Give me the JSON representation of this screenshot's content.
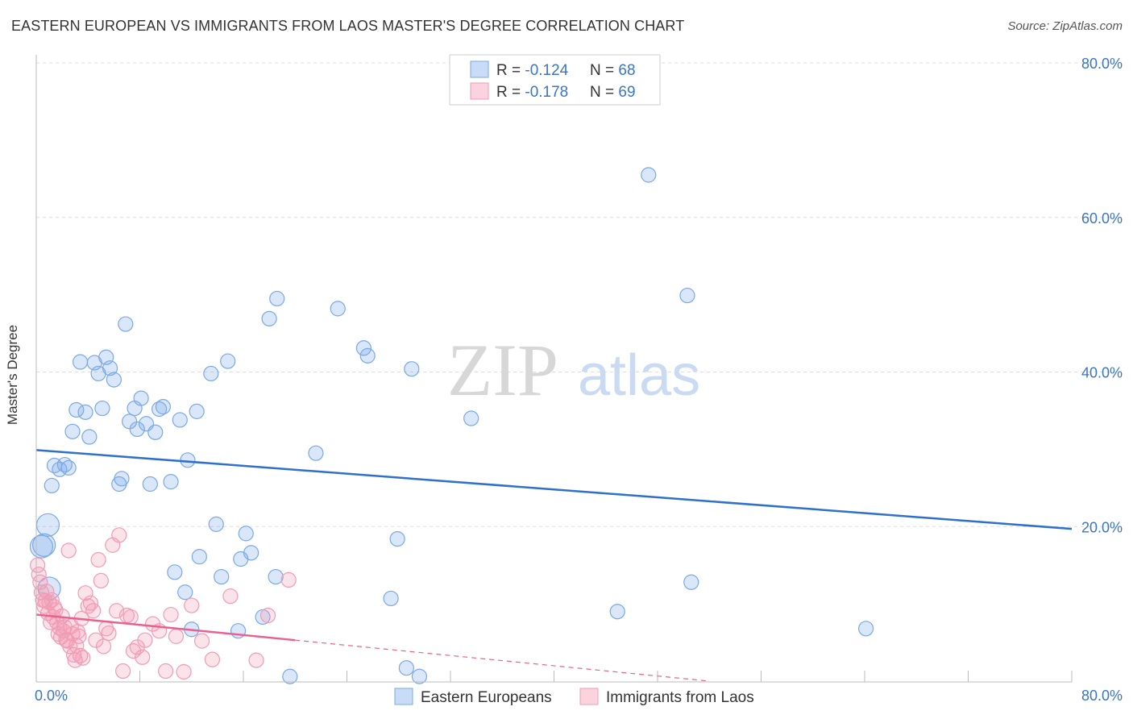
{
  "title": "EASTERN EUROPEAN VS IMMIGRANTS FROM LAOS MASTER'S DEGREE CORRELATION CHART",
  "source": "Source: ZipAtlas.com",
  "watermark": {
    "zip": "ZIP",
    "atlas": "atlas"
  },
  "legend_top": {
    "rows": [
      {
        "r_label": "R = ",
        "r_value": "-0.124",
        "n_label": "N = ",
        "n_value": "68"
      },
      {
        "r_label": "R = ",
        "r_value": "-0.178",
        "n_label": "N = ",
        "n_value": "69"
      }
    ]
  },
  "colors": {
    "blue": "#7aa8e8",
    "blue_line": "#2f6fcf",
    "pink": "#f19bb5",
    "pink_line": "#e8618f",
    "axis_text": "#3a74c8",
    "grid": "#dddddd"
  },
  "chart_data": {
    "type": "scatter",
    "title": "EASTERN EUROPEAN VS IMMIGRANTS FROM LAOS MASTER'S DEGREE CORRELATION CHART",
    "xlabel": "",
    "ylabel": "Master's Degree",
    "xlim": [
      0,
      80
    ],
    "ylim": [
      0,
      80
    ],
    "x_tick_labels": [
      "0.0%",
      "80.0%"
    ],
    "y_tick_labels": [
      "20.0%",
      "40.0%",
      "60.0%",
      "80.0%"
    ],
    "y_ticks": [
      20,
      40,
      60,
      80
    ],
    "grid": true,
    "legend_position": "bottom-center",
    "series": [
      {
        "name": "Eastern Europeans",
        "color": "#7aa8e8",
        "R": -0.124,
        "N": 68,
        "trend": {
          "x": [
            0,
            80
          ],
          "y": [
            29.9,
            19.7
          ],
          "dashed_to": null
        },
        "points": [
          [
            0.6,
            17.6
          ],
          [
            1.0,
            12.0
          ],
          [
            0.9,
            20.2
          ],
          [
            1.2,
            25.3
          ],
          [
            1.4,
            27.9
          ],
          [
            1.8,
            27.4
          ],
          [
            2.2,
            28.0
          ],
          [
            2.5,
            27.6
          ],
          [
            2.8,
            32.3
          ],
          [
            3.1,
            35.1
          ],
          [
            3.4,
            41.3
          ],
          [
            3.8,
            34.8
          ],
          [
            4.1,
            31.6
          ],
          [
            4.5,
            41.2
          ],
          [
            4.8,
            39.8
          ],
          [
            5.1,
            35.3
          ],
          [
            5.4,
            41.9
          ],
          [
            5.7,
            40.5
          ],
          [
            6.0,
            39.0
          ],
          [
            6.4,
            25.5
          ],
          [
            6.6,
            26.2
          ],
          [
            6.9,
            46.2
          ],
          [
            7.2,
            33.6
          ],
          [
            7.6,
            35.3
          ],
          [
            7.8,
            32.6
          ],
          [
            8.1,
            36.6
          ],
          [
            8.5,
            33.3
          ],
          [
            8.8,
            25.5
          ],
          [
            9.2,
            32.2
          ],
          [
            9.5,
            35.2
          ],
          [
            9.8,
            35.5
          ],
          [
            10.4,
            25.8
          ],
          [
            10.7,
            14.1
          ],
          [
            11.1,
            33.8
          ],
          [
            11.5,
            11.5
          ],
          [
            11.7,
            28.6
          ],
          [
            12.0,
            6.7
          ],
          [
            12.4,
            34.9
          ],
          [
            12.6,
            16.1
          ],
          [
            13.5,
            39.8
          ],
          [
            13.9,
            20.3
          ],
          [
            14.3,
            13.5
          ],
          [
            14.8,
            41.4
          ],
          [
            15.6,
            6.5
          ],
          [
            15.8,
            15.8
          ],
          [
            16.2,
            19.1
          ],
          [
            16.6,
            16.6
          ],
          [
            17.5,
            8.3
          ],
          [
            18.0,
            46.9
          ],
          [
            18.5,
            13.5
          ],
          [
            18.6,
            49.5
          ],
          [
            19.6,
            0.6
          ],
          [
            21.6,
            29.5
          ],
          [
            23.3,
            48.2
          ],
          [
            25.3,
            43.1
          ],
          [
            25.6,
            42.1
          ],
          [
            27.4,
            10.7
          ],
          [
            27.9,
            18.4
          ],
          [
            28.6,
            1.7
          ],
          [
            29.0,
            40.4
          ],
          [
            29.6,
            0.6
          ],
          [
            33.6,
            34.0
          ],
          [
            44.9,
            9.0
          ],
          [
            47.3,
            65.5
          ],
          [
            50.3,
            49.9
          ],
          [
            50.6,
            12.8
          ],
          [
            64.1,
            6.8
          ],
          [
            0.4,
            17.4
          ]
        ]
      },
      {
        "name": "Immigrants from Laos",
        "color": "#f19bb5",
        "R": -0.178,
        "N": 69,
        "trend": {
          "x": [
            0,
            20
          ],
          "y": [
            8.6,
            5.3
          ],
          "dashed_to": {
            "x": 52,
            "y": 0.0
          }
        },
        "points": [
          [
            0.1,
            15.0
          ],
          [
            0.2,
            13.8
          ],
          [
            0.3,
            12.8
          ],
          [
            0.4,
            11.5
          ],
          [
            0.5,
            10.5
          ],
          [
            0.6,
            9.7
          ],
          [
            0.7,
            10.4
          ],
          [
            0.8,
            11.6
          ],
          [
            0.9,
            8.8
          ],
          [
            1.0,
            10.2
          ],
          [
            1.1,
            7.6
          ],
          [
            1.2,
            10.5
          ],
          [
            1.3,
            8.3
          ],
          [
            1.4,
            9.6
          ],
          [
            1.5,
            9.2
          ],
          [
            1.6,
            7.6
          ],
          [
            1.7,
            6.1
          ],
          [
            1.8,
            6.9
          ],
          [
            1.9,
            5.7
          ],
          [
            2.0,
            8.4
          ],
          [
            2.1,
            6.5
          ],
          [
            2.2,
            7.0
          ],
          [
            2.3,
            5.3
          ],
          [
            2.4,
            5.2
          ],
          [
            2.5,
            16.9
          ],
          [
            2.6,
            4.5
          ],
          [
            2.7,
            7.1
          ],
          [
            2.8,
            6.1
          ],
          [
            2.9,
            3.4
          ],
          [
            3.0,
            2.7
          ],
          [
            3.1,
            4.6
          ],
          [
            3.2,
            6.4
          ],
          [
            3.3,
            5.8
          ],
          [
            3.4,
            3.3
          ],
          [
            3.5,
            8.1
          ],
          [
            3.6,
            3.0
          ],
          [
            3.8,
            11.4
          ],
          [
            4.0,
            9.7
          ],
          [
            4.2,
            10.1
          ],
          [
            4.4,
            9.1
          ],
          [
            4.6,
            5.3
          ],
          [
            4.8,
            15.7
          ],
          [
            5.0,
            13.0
          ],
          [
            5.2,
            4.5
          ],
          [
            5.4,
            6.8
          ],
          [
            5.6,
            6.2
          ],
          [
            5.9,
            17.6
          ],
          [
            6.2,
            9.1
          ],
          [
            6.4,
            18.9
          ],
          [
            6.7,
            1.3
          ],
          [
            7.0,
            8.5
          ],
          [
            7.3,
            8.3
          ],
          [
            7.5,
            3.9
          ],
          [
            7.8,
            4.4
          ],
          [
            8.2,
            3.1
          ],
          [
            8.4,
            5.3
          ],
          [
            9.0,
            7.4
          ],
          [
            9.5,
            6.5
          ],
          [
            10.0,
            1.3
          ],
          [
            10.4,
            8.6
          ],
          [
            10.8,
            5.8
          ],
          [
            11.4,
            1.2
          ],
          [
            12.0,
            9.8
          ],
          [
            12.8,
            5.2
          ],
          [
            13.6,
            2.8
          ],
          [
            15.0,
            11.0
          ],
          [
            17.0,
            2.7
          ],
          [
            17.9,
            8.5
          ],
          [
            19.5,
            13.1
          ]
        ]
      }
    ]
  },
  "legend_bottom": {
    "items": [
      {
        "label": "Eastern Europeans"
      },
      {
        "label": "Immigrants from Laos"
      }
    ]
  }
}
